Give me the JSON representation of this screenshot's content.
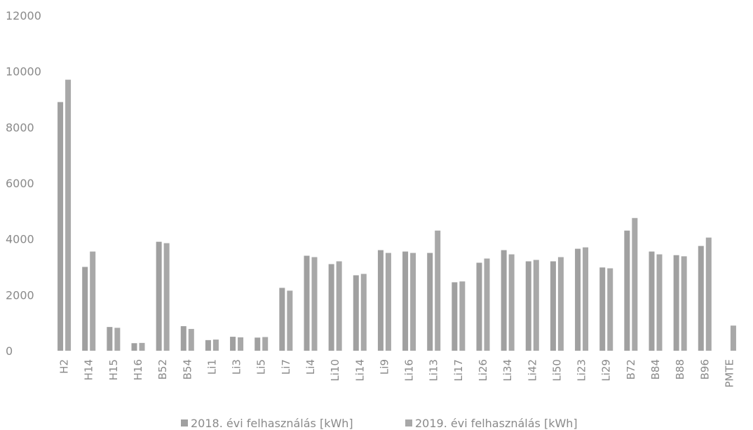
{
  "chart_data": {
    "type": "bar",
    "categories": [
      "H2",
      "H14",
      "H15",
      "H16",
      "B52",
      "B54",
      "Li1",
      "Li3",
      "Li5",
      "Li7",
      "Li4",
      "Li10",
      "Li14",
      "Li9",
      "Li16",
      "Li13",
      "Li17",
      "Li26",
      "Li34",
      "Li42",
      "Li50",
      "Li23",
      "Li29",
      "B72",
      "B84",
      "B88",
      "B96",
      "PMTE"
    ],
    "series": [
      {
        "name": "2018. évi felhasználás [kWh]",
        "color": "#a0a0a0",
        "values": [
          8900,
          3000,
          850,
          270,
          3900,
          880,
          380,
          500,
          470,
          2250,
          3400,
          3100,
          2700,
          3600,
          3550,
          3500,
          2450,
          3150,
          3600,
          3200,
          3200,
          3650,
          2980,
          4300,
          3550,
          3420,
          3750,
          null
        ]
      },
      {
        "name": "2019. évi felhasználás [kWh]",
        "color": "#a8a8a8",
        "values": [
          9700,
          3550,
          820,
          280,
          3850,
          780,
          400,
          480,
          490,
          2150,
          3350,
          3200,
          2750,
          3500,
          3500,
          4300,
          2480,
          3300,
          3450,
          3250,
          3350,
          3700,
          2950,
          4750,
          3450,
          3380,
          4050,
          900
        ]
      }
    ],
    "title": "",
    "xlabel": "",
    "ylabel": "",
    "ylim": [
      0,
      12000
    ],
    "yticks": [
      "0",
      "2000",
      "4000",
      "6000",
      "8000",
      "10000",
      "12000"
    ],
    "grid": false,
    "legend_position": "bottom"
  }
}
